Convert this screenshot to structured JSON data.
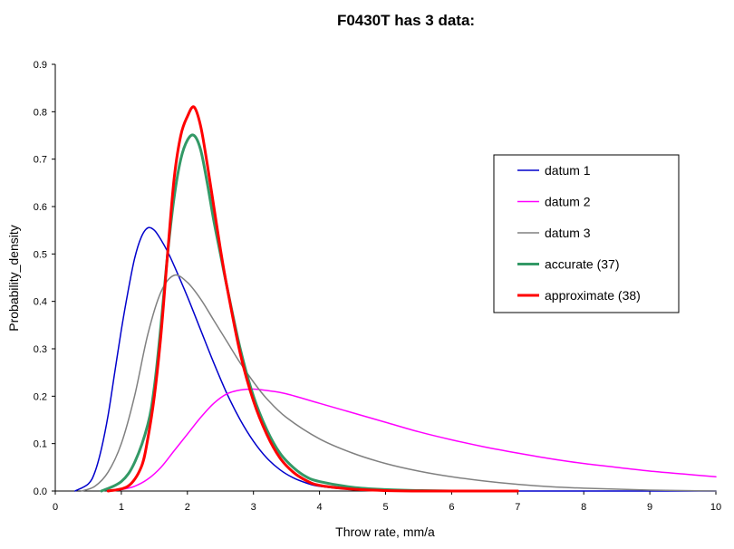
{
  "chart_data": {
    "type": "line",
    "title": "F0430T has 3 data:",
    "xlabel": "Throw rate, mm/a",
    "ylabel": "Probability_density",
    "xlim": [
      0,
      10
    ],
    "ylim": [
      0,
      0.9
    ],
    "x_ticks": [
      "0",
      "1",
      "2",
      "3",
      "4",
      "5",
      "6",
      "7",
      "8",
      "9",
      "10"
    ],
    "y_ticks": [
      "0.0",
      "0.1",
      "0.2",
      "0.3",
      "0.4",
      "0.5",
      "0.6",
      "0.7",
      "0.8",
      "0.9"
    ],
    "grid": false,
    "legend_position": "right",
    "series": [
      {
        "name": "datum 1",
        "color": "#0000cc",
        "stroke": "thin",
        "x": [
          0.3,
          0.5,
          0.6,
          0.7,
          0.8,
          0.9,
          1.0,
          1.1,
          1.2,
          1.3,
          1.4,
          1.5,
          1.6,
          1.7,
          1.8,
          2.0,
          2.2,
          2.4,
          2.6,
          2.8,
          3.0,
          3.2,
          3.4,
          3.6,
          3.8,
          4.0,
          4.5,
          5.0,
          5.5,
          6.0,
          7.0,
          8.0,
          10.0
        ],
        "y": [
          0.0,
          0.015,
          0.04,
          0.09,
          0.16,
          0.25,
          0.34,
          0.42,
          0.49,
          0.535,
          0.555,
          0.55,
          0.53,
          0.505,
          0.475,
          0.41,
          0.34,
          0.27,
          0.205,
          0.15,
          0.105,
          0.07,
          0.045,
          0.028,
          0.017,
          0.01,
          0.003,
          0.001,
          0.0,
          0.0,
          0.0,
          0.0,
          0.0
        ]
      },
      {
        "name": "datum 2",
        "color": "#ff00ff",
        "stroke": "thin",
        "x": [
          0.8,
          1.0,
          1.2,
          1.4,
          1.6,
          1.8,
          2.0,
          2.2,
          2.4,
          2.6,
          2.8,
          3.0,
          3.2,
          3.5,
          4.0,
          4.5,
          5.0,
          5.5,
          6.0,
          6.5,
          7.0,
          7.5,
          8.0,
          8.5,
          9.0,
          9.5,
          10.0
        ],
        "y": [
          0.0,
          0.003,
          0.01,
          0.025,
          0.05,
          0.085,
          0.12,
          0.155,
          0.185,
          0.205,
          0.213,
          0.215,
          0.212,
          0.205,
          0.185,
          0.165,
          0.145,
          0.125,
          0.108,
          0.093,
          0.08,
          0.068,
          0.058,
          0.05,
          0.042,
          0.036,
          0.03
        ]
      },
      {
        "name": "datum 3",
        "color": "#808080",
        "stroke": "thin",
        "x": [
          0.4,
          0.6,
          0.8,
          1.0,
          1.2,
          1.4,
          1.6,
          1.8,
          2.0,
          2.2,
          2.4,
          2.6,
          2.8,
          3.0,
          3.2,
          3.5,
          4.0,
          4.5,
          5.0,
          5.5,
          6.0,
          6.5,
          7.0,
          7.5,
          8.0,
          9.0,
          10.0
        ],
        "y": [
          0.0,
          0.01,
          0.04,
          0.1,
          0.2,
          0.33,
          0.42,
          0.455,
          0.44,
          0.405,
          0.36,
          0.315,
          0.27,
          0.23,
          0.195,
          0.155,
          0.11,
          0.08,
          0.058,
          0.042,
          0.03,
          0.021,
          0.014,
          0.009,
          0.006,
          0.002,
          0.0
        ]
      },
      {
        "name": "accurate (37)",
        "color": "#339966",
        "stroke": "thick",
        "x": [
          0.7,
          1.0,
          1.2,
          1.4,
          1.5,
          1.6,
          1.7,
          1.8,
          1.9,
          2.0,
          2.1,
          2.2,
          2.3,
          2.4,
          2.5,
          2.6,
          2.8,
          3.0,
          3.2,
          3.4,
          3.6,
          3.8,
          4.0,
          4.5,
          5.0,
          5.5,
          6.0,
          7.0
        ],
        "y": [
          0.0,
          0.02,
          0.06,
          0.14,
          0.22,
          0.35,
          0.5,
          0.62,
          0.7,
          0.74,
          0.75,
          0.72,
          0.65,
          0.57,
          0.5,
          0.43,
          0.3,
          0.2,
          0.13,
          0.08,
          0.05,
          0.03,
          0.02,
          0.008,
          0.003,
          0.001,
          0.0,
          0.0
        ]
      },
      {
        "name": "approximate (38)",
        "color": "#ff0000",
        "stroke": "thick",
        "x": [
          0.8,
          1.1,
          1.3,
          1.4,
          1.5,
          1.6,
          1.7,
          1.8,
          1.9,
          2.0,
          2.1,
          2.2,
          2.3,
          2.4,
          2.5,
          2.6,
          2.8,
          3.0,
          3.2,
          3.4,
          3.6,
          3.8,
          4.0,
          4.5,
          5.0,
          5.5,
          6.0,
          7.0
        ],
        "y": [
          0.0,
          0.01,
          0.05,
          0.11,
          0.2,
          0.33,
          0.5,
          0.66,
          0.75,
          0.79,
          0.81,
          0.77,
          0.69,
          0.6,
          0.51,
          0.43,
          0.29,
          0.19,
          0.12,
          0.07,
          0.04,
          0.022,
          0.012,
          0.004,
          0.001,
          0.0,
          0.0,
          0.0
        ]
      }
    ]
  }
}
